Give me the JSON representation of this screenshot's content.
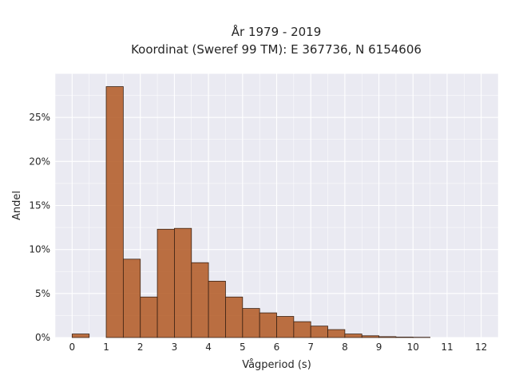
{
  "chart_data": {
    "type": "bar",
    "title": [
      "År 1979 - 2019",
      "Koordinat (Sweref 99 TM): E 367736, N 6154606"
    ],
    "xlabel": "Vågperiod (s)",
    "ylabel": "Andel",
    "xlim": [
      -0.5,
      12.5
    ],
    "ylim": [
      0,
      0.3
    ],
    "x_ticks": [
      0,
      1,
      2,
      3,
      4,
      5,
      6,
      7,
      8,
      9,
      10,
      11,
      12
    ],
    "x_tick_labels": [
      "0",
      "1",
      "2",
      "3",
      "4",
      "5",
      "6",
      "7",
      "8",
      "9",
      "10",
      "11",
      "12"
    ],
    "y_ticks": [
      0,
      0.05,
      0.1,
      0.15,
      0.2,
      0.25
    ],
    "y_tick_labels": [
      "0%",
      "5%",
      "10%",
      "15%",
      "20%",
      "25%"
    ],
    "bin_width": 0.5,
    "bins": [
      {
        "start": 0.0,
        "value": 0.004
      },
      {
        "start": 1.0,
        "value": 0.285
      },
      {
        "start": 1.5,
        "value": 0.089
      },
      {
        "start": 2.0,
        "value": 0.046
      },
      {
        "start": 2.5,
        "value": 0.123
      },
      {
        "start": 3.0,
        "value": 0.124
      },
      {
        "start": 3.5,
        "value": 0.085
      },
      {
        "start": 4.0,
        "value": 0.064
      },
      {
        "start": 4.5,
        "value": 0.046
      },
      {
        "start": 5.0,
        "value": 0.033
      },
      {
        "start": 5.5,
        "value": 0.028
      },
      {
        "start": 6.0,
        "value": 0.024
      },
      {
        "start": 6.5,
        "value": 0.018
      },
      {
        "start": 7.0,
        "value": 0.013
      },
      {
        "start": 7.5,
        "value": 0.009
      },
      {
        "start": 8.0,
        "value": 0.004
      },
      {
        "start": 8.5,
        "value": 0.002
      },
      {
        "start": 9.0,
        "value": 0.001
      },
      {
        "start": 9.5,
        "value": 0.0005
      },
      {
        "start": 10.0,
        "value": 0.0003
      }
    ],
    "grid": true,
    "bar_color": "#b5602e",
    "bar_edge_color": "#3a2214",
    "background_color": "#eaeaf2",
    "grid_color": "#ffffff"
  }
}
